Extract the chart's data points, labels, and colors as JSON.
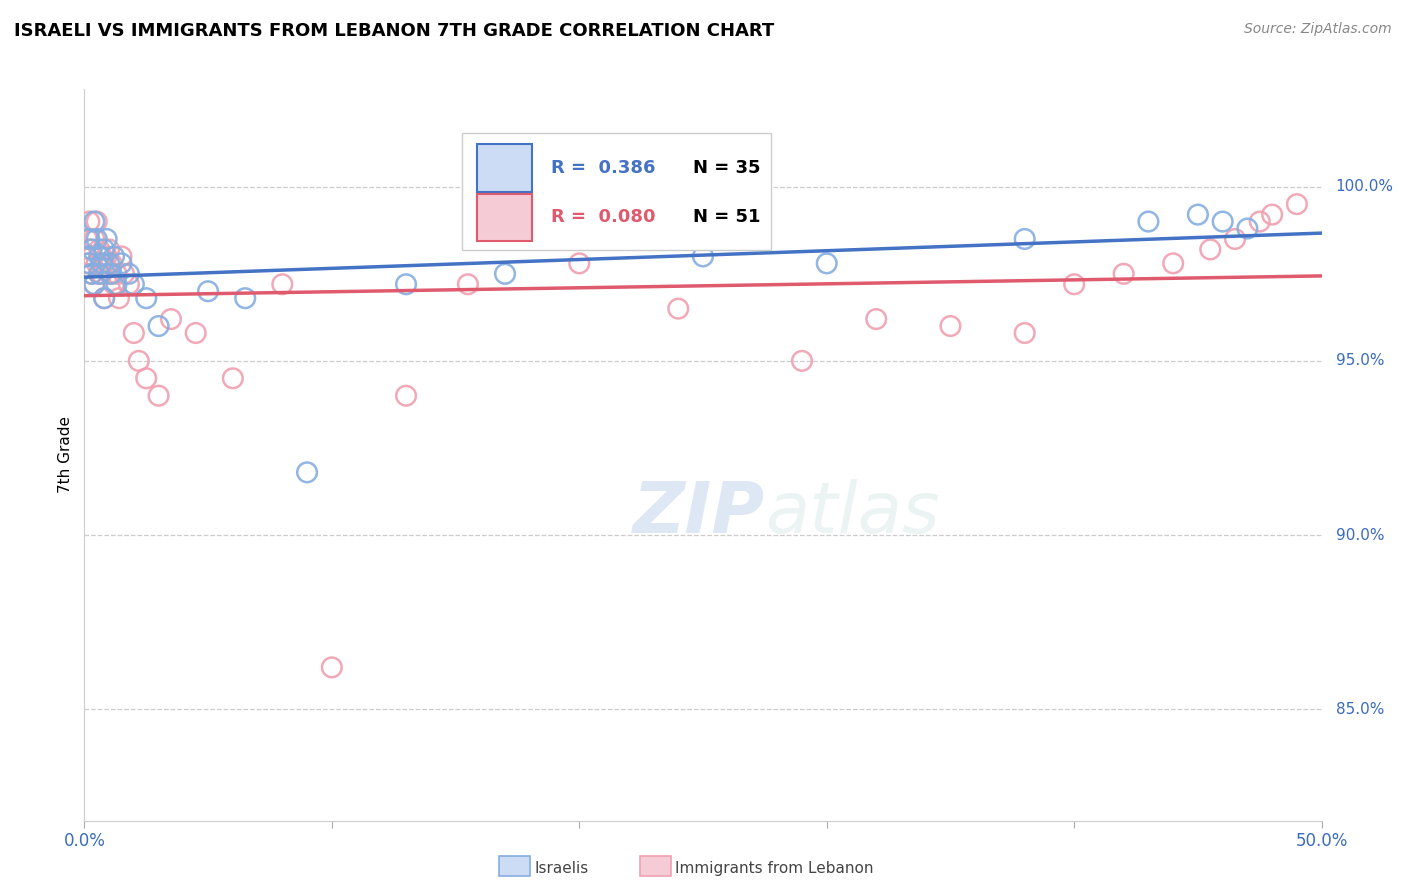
{
  "title": "ISRAELI VS IMMIGRANTS FROM LEBANON 7TH GRADE CORRELATION CHART",
  "source": "Source: ZipAtlas.com",
  "ylabel": "7th Grade",
  "ylabel_ticks": [
    "100.0%",
    "95.0%",
    "90.0%",
    "85.0%"
  ],
  "ylabel_tick_values": [
    1.0,
    0.95,
    0.9,
    0.85
  ],
  "xmin": 0.0,
  "xmax": 0.5,
  "ymin": 0.818,
  "ymax": 1.028,
  "R_israeli": 0.386,
  "N_israeli": 35,
  "R_lebanon": 0.08,
  "N_lebanon": 51,
  "line_color_israeli": "#4472c4",
  "line_color_lebanon": "#e05a6e",
  "dot_color_israeli": "#85aee0",
  "dot_color_lebanon": "#f0a0b0",
  "israelis_x": [
    0.001,
    0.002,
    0.002,
    0.003,
    0.003,
    0.004,
    0.004,
    0.005,
    0.006,
    0.006,
    0.007,
    0.008,
    0.008,
    0.009,
    0.01,
    0.011,
    0.012,
    0.013,
    0.015,
    0.018,
    0.02,
    0.025,
    0.03,
    0.05,
    0.065,
    0.09,
    0.13,
    0.17,
    0.25,
    0.3,
    0.38,
    0.43,
    0.45,
    0.46,
    0.47
  ],
  "israelis_y": [
    0.98,
    0.978,
    0.985,
    0.975,
    0.982,
    0.99,
    0.972,
    0.985,
    0.98,
    0.975,
    0.978,
    0.982,
    0.968,
    0.985,
    0.978,
    0.975,
    0.98,
    0.972,
    0.978,
    0.975,
    0.972,
    0.968,
    0.96,
    0.97,
    0.968,
    0.918,
    0.972,
    0.975,
    0.98,
    0.978,
    0.985,
    0.99,
    0.992,
    0.99,
    0.988
  ],
  "lebanon_x": [
    0.001,
    0.001,
    0.002,
    0.002,
    0.003,
    0.003,
    0.004,
    0.004,
    0.005,
    0.005,
    0.006,
    0.006,
    0.007,
    0.007,
    0.008,
    0.008,
    0.009,
    0.01,
    0.01,
    0.011,
    0.012,
    0.013,
    0.014,
    0.015,
    0.016,
    0.018,
    0.02,
    0.022,
    0.025,
    0.03,
    0.035,
    0.045,
    0.06,
    0.08,
    0.1,
    0.13,
    0.155,
    0.2,
    0.24,
    0.29,
    0.32,
    0.35,
    0.38,
    0.4,
    0.42,
    0.44,
    0.455,
    0.465,
    0.475,
    0.48,
    0.49
  ],
  "lebanon_y": [
    0.985,
    0.978,
    0.982,
    0.99,
    0.975,
    0.98,
    0.985,
    0.972,
    0.978,
    0.99,
    0.975,
    0.982,
    0.98,
    0.975,
    0.978,
    0.968,
    0.98,
    0.975,
    0.982,
    0.978,
    0.972,
    0.975,
    0.968,
    0.98,
    0.975,
    0.972,
    0.958,
    0.95,
    0.945,
    0.94,
    0.962,
    0.958,
    0.945,
    0.972,
    0.862,
    0.94,
    0.972,
    0.978,
    0.965,
    0.95,
    0.962,
    0.96,
    0.958,
    0.972,
    0.975,
    0.978,
    0.982,
    0.985,
    0.99,
    0.992,
    0.995
  ]
}
